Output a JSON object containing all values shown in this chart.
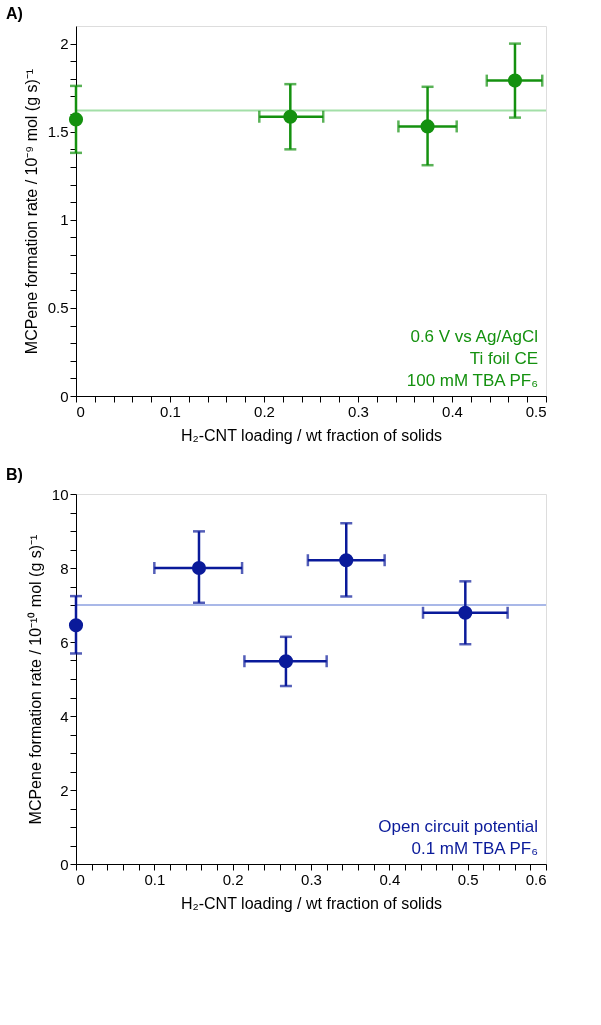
{
  "chart_data": [
    {
      "type": "scatter",
      "title": "A)",
      "xlabel": "H₂-CNT loading / wt fraction of solids",
      "ylabel": "MCPene formation rate / 10⁻⁹ mol (g s)⁻¹",
      "x": [
        0,
        0.228,
        0.374,
        0.467
      ],
      "series": [
        {
          "color": "#14910f",
          "values": [
            1.57,
            1.585,
            1.53,
            1.79
          ],
          "errors": [
            [
              1.38,
              1.76
            ],
            [
              1.4,
              1.77
            ],
            [
              1.31,
              1.755
            ],
            [
              1.58,
              2.0
            ]
          ],
          "xerrors": [
            null,
            [
              0.195,
              0.263
            ],
            [
              0.343,
              0.405
            ],
            [
              0.437,
              0.496
            ]
          ]
        }
      ],
      "xlim": [
        0,
        0.5
      ],
      "ylim": [
        0,
        2.1
      ],
      "xticks": [
        0,
        {
          "value": 0.02,
          "label": null
        },
        {
          "value": 0.04,
          "label": null
        },
        {
          "value": 0.06,
          "label": null
        },
        {
          "value": 0.08,
          "label": null
        },
        0.1,
        {
          "value": 0.12,
          "label": null
        },
        {
          "value": 0.14,
          "label": null
        },
        {
          "value": 0.16,
          "label": null
        },
        {
          "value": 0.18,
          "label": null
        },
        0.2,
        {
          "value": 0.22,
          "label": null
        },
        {
          "value": 0.24,
          "label": null
        },
        {
          "value": 0.26,
          "label": null
        },
        {
          "value": 0.28,
          "label": null
        },
        0.3,
        {
          "value": 0.32,
          "label": null
        },
        {
          "value": 0.34,
          "label": null
        },
        {
          "value": 0.36,
          "label": null
        },
        {
          "value": 0.38,
          "label": null
        },
        0.4,
        {
          "value": 0.42,
          "label": null
        },
        {
          "value": 0.44,
          "label": null
        },
        {
          "value": 0.46,
          "label": null
        },
        {
          "value": 0.48,
          "label": null
        },
        0.5
      ],
      "yticks": [
        0,
        {
          "value": 0.1,
          "label": null
        },
        {
          "value": 0.2,
          "label": null
        },
        {
          "value": 0.3,
          "label": null
        },
        {
          "value": 0.4,
          "label": null
        },
        0.5,
        {
          "value": 0.6,
          "label": null
        },
        {
          "value": 0.7,
          "label": null
        },
        {
          "value": 0.8,
          "label": null
        },
        {
          "value": 0.9,
          "label": null
        },
        1,
        {
          "value": 1.1,
          "label": null
        },
        {
          "value": 1.2,
          "label": null
        },
        {
          "value": 1.3,
          "label": null
        },
        {
          "value": 1.4,
          "label": null
        },
        1.5,
        {
          "value": 1.6,
          "label": null
        },
        {
          "value": 1.7,
          "label": null
        },
        {
          "value": 1.8,
          "label": null
        },
        {
          "value": 1.9,
          "label": null
        },
        2
      ],
      "ref_lines": [
        {
          "axis": "y",
          "value": 1.62,
          "color": "#a3dfa8"
        }
      ],
      "annotations": [
        "0.6 V vs Ag/AgCl",
        "Ti foil CE",
        "100 mM TBA PF₆"
      ],
      "marker": "circle",
      "grid": false
    },
    {
      "type": "scatter",
      "title": "B)",
      "xlabel": "H₂-CNT loading / wt fraction of solids",
      "ylabel": "MCPene formation rate / 10⁻¹⁰ mol (g s)⁻¹",
      "x": [
        0,
        0.157,
        0.268,
        0.345,
        0.497
      ],
      "series": [
        {
          "color": "#0a1a9a",
          "values": [
            6.45,
            8.0,
            5.48,
            8.21,
            6.79
          ],
          "errors": [
            [
              5.69,
              7.24
            ],
            [
              7.06,
              8.99
            ],
            [
              4.81,
              6.14
            ],
            [
              7.23,
              9.21
            ],
            [
              5.94,
              7.64
            ]
          ],
          "xerrors": [
            null,
            [
              0.1,
              0.212
            ],
            [
              0.215,
              0.32
            ],
            [
              0.296,
              0.394
            ],
            [
              0.443,
              0.551
            ]
          ]
        }
      ],
      "xlim": [
        0,
        0.6
      ],
      "ylim": [
        0,
        10
      ],
      "xticks": [
        0,
        {
          "value": 0.02,
          "label": null
        },
        {
          "value": 0.04,
          "label": null
        },
        {
          "value": 0.06,
          "label": null
        },
        {
          "value": 0.08,
          "label": null
        },
        0.1,
        {
          "value": 0.12,
          "label": null
        },
        {
          "value": 0.14,
          "label": null
        },
        {
          "value": 0.16,
          "label": null
        },
        {
          "value": 0.18,
          "label": null
        },
        0.2,
        {
          "value": 0.22,
          "label": null
        },
        {
          "value": 0.24,
          "label": null
        },
        {
          "value": 0.26,
          "label": null
        },
        {
          "value": 0.28,
          "label": null
        },
        0.3,
        {
          "value": 0.32,
          "label": null
        },
        {
          "value": 0.34,
          "label": null
        },
        {
          "value": 0.36,
          "label": null
        },
        {
          "value": 0.38,
          "label": null
        },
        0.4,
        {
          "value": 0.42,
          "label": null
        },
        {
          "value": 0.44,
          "label": null
        },
        {
          "value": 0.46,
          "label": null
        },
        {
          "value": 0.48,
          "label": null
        },
        0.5,
        {
          "value": 0.52,
          "label": null
        },
        {
          "value": 0.54,
          "label": null
        },
        {
          "value": 0.56,
          "label": null
        },
        {
          "value": 0.58,
          "label": null
        },
        0.6
      ],
      "yticks": [
        0,
        {
          "value": 0.5,
          "label": null
        },
        {
          "value": 1,
          "label": null
        },
        {
          "value": 1.5,
          "label": null
        },
        2,
        {
          "value": 2.5,
          "label": null
        },
        {
          "value": 3,
          "label": null
        },
        {
          "value": 3.5,
          "label": null
        },
        4,
        {
          "value": 4.5,
          "label": null
        },
        {
          "value": 5,
          "label": null
        },
        {
          "value": 5.5,
          "label": null
        },
        6,
        {
          "value": 6.5,
          "label": null
        },
        {
          "value": 7,
          "label": null
        },
        {
          "value": 7.5,
          "label": null
        },
        8,
        {
          "value": 8.5,
          "label": null
        },
        {
          "value": 9,
          "label": null
        },
        {
          "value": 9.5,
          "label": null
        },
        10
      ],
      "ref_lines": [
        {
          "axis": "y",
          "value": 7.0,
          "color": "#a9b8e8"
        }
      ],
      "annotations": [
        "Open circuit potential",
        "0.1 mM TBA PF₆"
      ],
      "marker": "circle",
      "grid": false
    }
  ]
}
